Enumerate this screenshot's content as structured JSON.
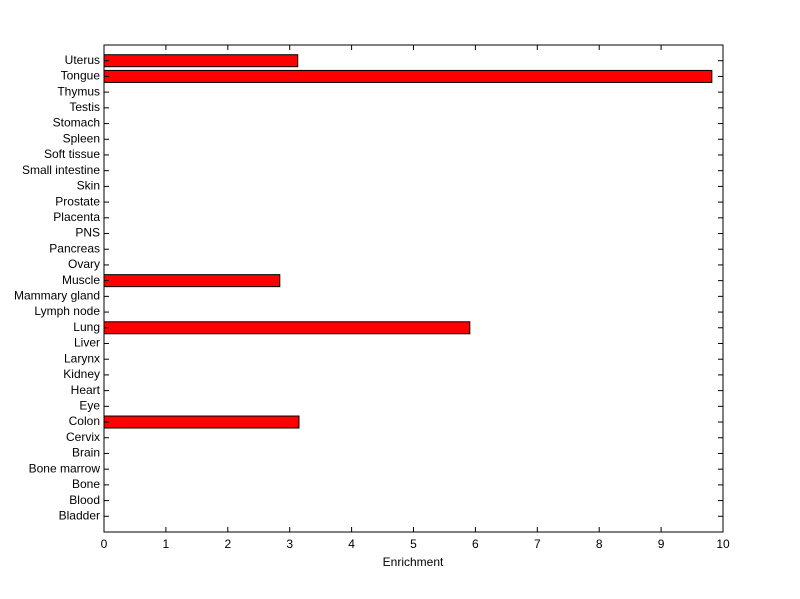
{
  "chart_data": {
    "type": "barh",
    "xlabel": "Enrichment",
    "categories": [
      "Uterus",
      "Tongue",
      "Thymus",
      "Testis",
      "Stomach",
      "Spleen",
      "Soft tissue",
      "Small intestine",
      "Skin",
      "Prostate",
      "Placenta",
      "PNS",
      "Pancreas",
      "Ovary",
      "Muscle",
      "Mammary gland",
      "Lymph node",
      "Lung",
      "Liver",
      "Larynx",
      "Kidney",
      "Heart",
      "Eye",
      "Colon",
      "Cervix",
      "Brain",
      "Bone marrow",
      "Bone",
      "Blood",
      "Bladder"
    ],
    "values": [
      3.13,
      9.82,
      0,
      0,
      0,
      0,
      0,
      0,
      0,
      0,
      0,
      0,
      0,
      0,
      2.84,
      0,
      0,
      5.91,
      0,
      0,
      0,
      0,
      0,
      3.15,
      0,
      0,
      0,
      0,
      0,
      0
    ],
    "color": "#ff0000",
    "xlim": [
      0,
      10
    ],
    "xticks": [
      0,
      1,
      2,
      3,
      4,
      5,
      6,
      7,
      8,
      9,
      10
    ]
  }
}
